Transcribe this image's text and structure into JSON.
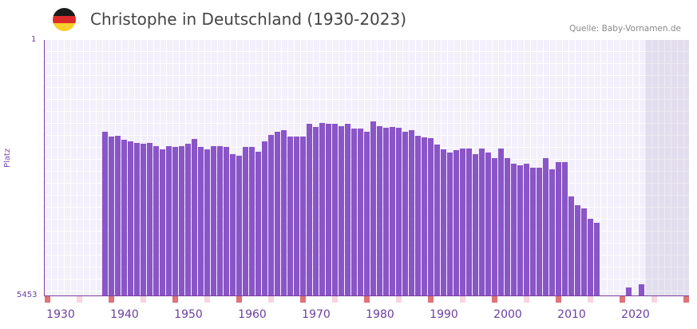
{
  "header": {
    "flag_icon": "germany-flag-icon",
    "flag_colors": [
      "#1a1a1a",
      "#dd2a2a",
      "#f8cf2c"
    ],
    "title": "Christophe in Deutschland (1930-2023)",
    "source": "Quelle: Baby-Vornamen.de"
  },
  "colors": {
    "bar": "#8a55c7",
    "axis": "#7b3fa0",
    "marker_strong": "#e07278",
    "marker_light": "#f6d6df"
  },
  "chart_data": {
    "type": "bar",
    "title": "Christophe in Deutschland (1930-2023)",
    "xlabel": "",
    "ylabel": "Platz",
    "y_ticks": [
      "1",
      "5453"
    ],
    "ylim": [
      5453,
      1
    ],
    "x_ticks": [
      "1930",
      "1940",
      "1950",
      "1960",
      "1970",
      "1980",
      "1990",
      "2000",
      "2010",
      "2020"
    ],
    "note": "values are approximate rank (Platz); lower = more popular; y axis inverted",
    "categories": [
      1937,
      1938,
      1939,
      1940,
      1941,
      1942,
      1943,
      1944,
      1945,
      1946,
      1947,
      1948,
      1949,
      1950,
      1951,
      1952,
      1953,
      1954,
      1955,
      1956,
      1957,
      1958,
      1959,
      1960,
      1961,
      1962,
      1963,
      1964,
      1965,
      1966,
      1967,
      1968,
      1969,
      1970,
      1971,
      1972,
      1973,
      1974,
      1975,
      1976,
      1977,
      1978,
      1979,
      1980,
      1981,
      1982,
      1983,
      1984,
      1985,
      1986,
      1987,
      1988,
      1989,
      1990,
      1991,
      1992,
      1993,
      1994,
      1995,
      1996,
      1997,
      1998,
      1999,
      2000,
      2001,
      2002,
      2003,
      2004,
      2005,
      2006,
      2007,
      2008,
      2009,
      2010,
      2011,
      2012,
      2013,
      2014,
      2019,
      2021
    ],
    "values": [
      1960,
      2060,
      2045,
      2130,
      2160,
      2195,
      2210,
      2195,
      2260,
      2330,
      2260,
      2280,
      2260,
      2210,
      2110,
      2280,
      2330,
      2260,
      2260,
      2280,
      2430,
      2460,
      2280,
      2280,
      2380,
      2160,
      2025,
      1960,
      1925,
      2060,
      2060,
      2060,
      1790,
      1860,
      1775,
      1790,
      1790,
      1840,
      1790,
      1890,
      1890,
      1960,
      1740,
      1840,
      1875,
      1860,
      1875,
      1960,
      1925,
      2040,
      2075,
      2090,
      2230,
      2330,
      2400,
      2350,
      2315,
      2315,
      2430,
      2315,
      2400,
      2515,
      2315,
      2515,
      2635,
      2670,
      2635,
      2720,
      2720,
      2515,
      2755,
      2600,
      2600,
      3330,
      3520,
      3590,
      3810,
      3895,
      5290,
      5220
    ],
    "pixel_tops": [
      165,
      171,
      170,
      175,
      177,
      179,
      180,
      179,
      183,
      187,
      183,
      184,
      183,
      180,
      174,
      184,
      187,
      183,
      183,
      184,
      193,
      195,
      184,
      184,
      190,
      177,
      169,
      165,
      163,
      171,
      171,
      171,
      155,
      159,
      154,
      155,
      155,
      158,
      155,
      161,
      161,
      165,
      152,
      158,
      160,
      159,
      160,
      165,
      163,
      170,
      172,
      173,
      181,
      187,
      191,
      188,
      186,
      186,
      193,
      186,
      191,
      198,
      186,
      198,
      205,
      207,
      205,
      210,
      210,
      198,
      212,
      203,
      203,
      246,
      257,
      261,
      274,
      279,
      360,
      356
    ],
    "grid": true,
    "legend": null
  },
  "markers": {
    "strong_years": [
      1928,
      1938,
      1948,
      1958,
      1968,
      1978,
      1988,
      1998,
      2008,
      2018,
      2028
    ],
    "light_years": [
      1933,
      1943,
      1953,
      1963,
      1973,
      1983,
      1993,
      2003,
      2013,
      2023
    ]
  }
}
